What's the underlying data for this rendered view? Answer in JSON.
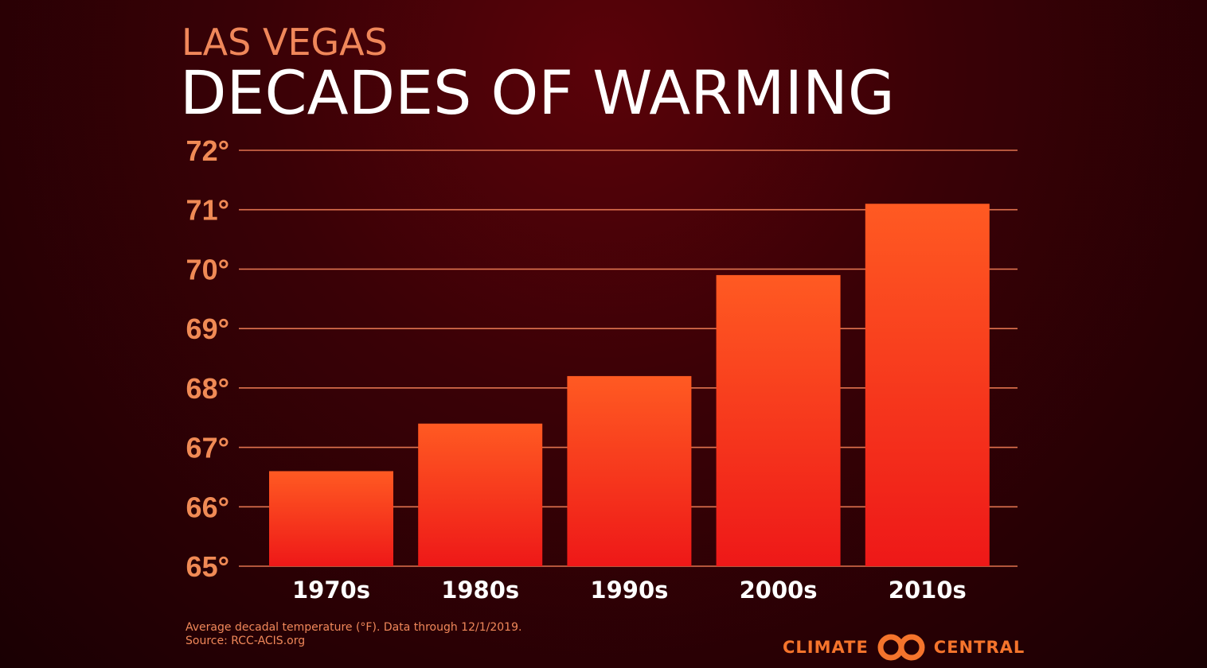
{
  "header": {
    "subtitle": "LAS VEGAS",
    "title": "DECADES OF WARMING"
  },
  "chart_data": {
    "type": "bar",
    "title": "DECADES OF WARMING",
    "subtitle": "LAS VEGAS",
    "categories": [
      "1970s",
      "1980s",
      "1990s",
      "2000s",
      "2010s"
    ],
    "values": [
      66.6,
      67.4,
      68.2,
      69.9,
      71.1
    ],
    "ylim": [
      65,
      72
    ],
    "yticks": [
      65,
      66,
      67,
      68,
      69,
      70,
      71,
      72
    ],
    "ytick_labels": [
      "65°",
      "66°",
      "67°",
      "68°",
      "69°",
      "70°",
      "71°",
      "72°"
    ],
    "grid": true,
    "bar_color_top": "#ff5a22",
    "bar_color_bottom": "#ee1818",
    "grid_color": "#e0734f"
  },
  "footnote": {
    "line1": "Average decadal temperature (°F). Data through 12/1/2019.",
    "line2": "Source: RCC-ACIS.org"
  },
  "logo": {
    "left": "CLIMATE",
    "right": "CENTRAL",
    "icon": "climate-central-rings-icon",
    "color": "#f5742c"
  }
}
